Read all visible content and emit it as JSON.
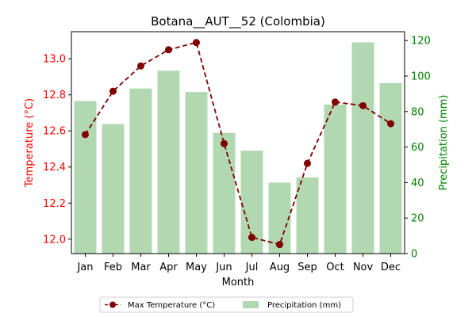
{
  "chart_data": {
    "type": "bar+line",
    "title": "Botana__AUT__52 (Colombia)",
    "xlabel": "Month",
    "categories": [
      "Jan",
      "Feb",
      "Mar",
      "Apr",
      "May",
      "Jun",
      "Jul",
      "Aug",
      "Sep",
      "Oct",
      "Nov",
      "Dec"
    ],
    "y_left": {
      "label": "Temperature (°C)",
      "color": "#ff0000",
      "lim": [
        11.92,
        13.15
      ],
      "ticks": [
        "12.0",
        "12.2",
        "12.4",
        "12.6",
        "12.8",
        "13.0"
      ]
    },
    "y_right": {
      "label": "Precipitation (mm)",
      "color": "#008000",
      "lim": [
        0,
        125
      ],
      "ticks": [
        "0",
        "20",
        "40",
        "60",
        "80",
        "100",
        "120"
      ]
    },
    "series": [
      {
        "name": "Precipitation (mm)",
        "kind": "bar",
        "axis": "right",
        "color": "#b1d8b1",
        "values": [
          86,
          73,
          93,
          103,
          91,
          68,
          58,
          40,
          43,
          84,
          119,
          96
        ]
      },
      {
        "name": "Max Temperature (°C)",
        "kind": "line",
        "axis": "left",
        "color": "#800000",
        "style": "dashed with circle markers",
        "values": [
          12.58,
          12.82,
          12.96,
          13.05,
          13.09,
          12.53,
          12.01,
          11.97,
          12.42,
          12.76,
          12.74,
          12.64
        ]
      }
    ],
    "legend": {
      "placement": "bottom-center",
      "entries": [
        "Max Temperature (°C)",
        "Precipitation (mm)"
      ]
    },
    "grid": false
  }
}
